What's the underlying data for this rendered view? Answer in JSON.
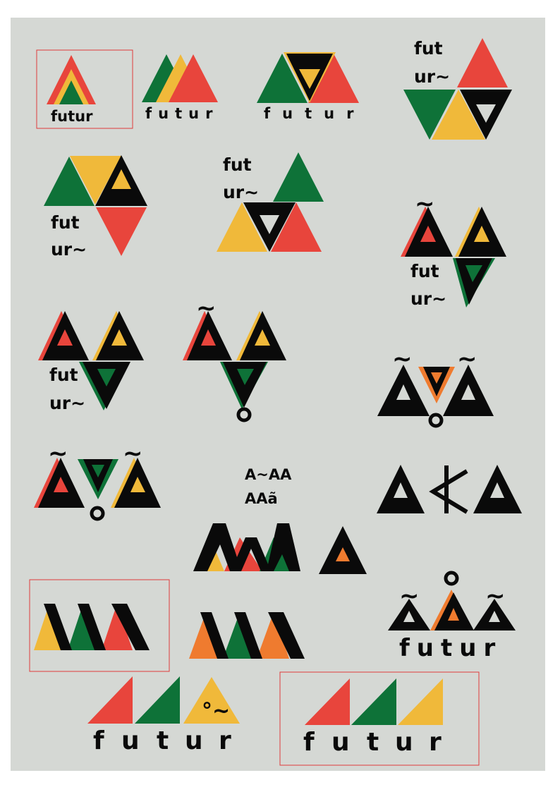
{
  "palette": {
    "red": "#e8453c",
    "green": "#0e7238",
    "yellow": "#f0b93a",
    "orange": "#ef7b2f",
    "black": "#0a0a0a",
    "board": "#d5d8d4",
    "frame": "#e03b3b"
  },
  "texts": {
    "futur": "futur",
    "fut": "fut",
    "ur": "ur~",
    "a_letter": "A",
    "a_tilde": "Ã",
    "a_ring": "Å",
    "tilde": "~",
    "ring_tilde": "°~",
    "snippet_line1": "A~AA",
    "snippet_line2": "AAã",
    "f": "f",
    "u": "u",
    "t": "t",
    "r": "r"
  }
}
